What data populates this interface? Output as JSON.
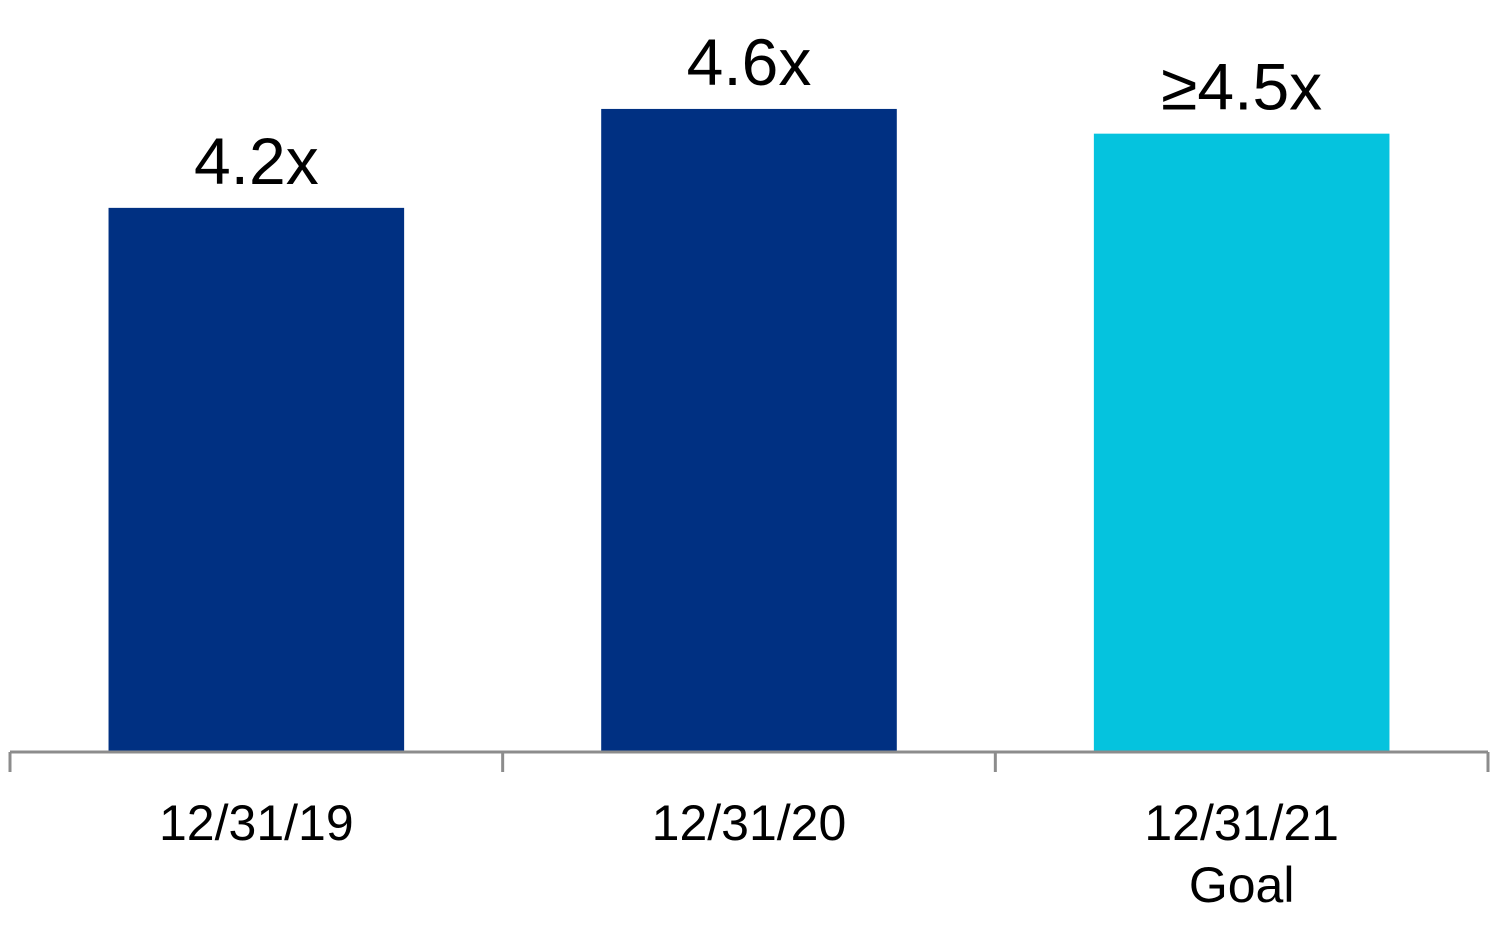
{
  "chart_data": {
    "type": "bar",
    "categories": [
      "12/31/19",
      "12/31/20",
      "12/31/21\nGoal"
    ],
    "values": [
      4.2,
      4.6,
      4.5
    ],
    "value_labels": [
      "4.2x",
      "4.6x",
      "≥4.5x"
    ],
    "colors": [
      "#003082",
      "#003082",
      "#05c3de"
    ],
    "ylim": [
      2,
      5
    ]
  }
}
